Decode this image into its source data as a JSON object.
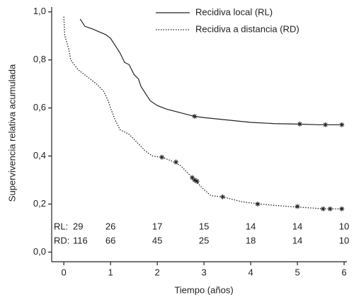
{
  "chart_data": {
    "type": "line",
    "y_label": "Supervivencia relativa acumulada",
    "x_label": "Tiempo (años)",
    "xlim": [
      -0.26,
      6.06
    ],
    "ylim": [
      -0.04,
      1.02
    ],
    "xticks": [
      0,
      1,
      2,
      3,
      4,
      5,
      6
    ],
    "yticks": [
      {
        "value": 0.0,
        "label": "0,0"
      },
      {
        "value": 0.2,
        "label": "0,2"
      },
      {
        "value": 0.4,
        "label": "0,4"
      },
      {
        "value": 0.6,
        "label": "0,6"
      },
      {
        "value": 0.8,
        "label": "0,8"
      },
      {
        "value": 1.0,
        "label": "1,0"
      }
    ],
    "series": [
      {
        "name": "Recidiva local (RL)",
        "color": "#222222",
        "dash": "solid",
        "x": [
          0.35,
          0.45,
          0.6,
          0.9,
          1.0,
          1.1,
          1.2,
          1.3,
          1.4,
          1.5,
          1.6,
          1.65,
          1.75,
          1.85,
          2.0,
          2.2,
          2.5,
          2.8,
          3.0,
          3.5,
          4.0,
          4.5,
          5.0,
          5.5,
          6.0
        ],
        "values": [
          0.97,
          0.94,
          0.93,
          0.905,
          0.89,
          0.86,
          0.83,
          0.79,
          0.78,
          0.74,
          0.72,
          0.69,
          0.66,
          0.63,
          0.61,
          0.595,
          0.58,
          0.565,
          0.56,
          0.55,
          0.54,
          0.535,
          0.533,
          0.53,
          0.53
        ],
        "censor_x": [
          2.8,
          5.05,
          5.6,
          5.95
        ],
        "censor_y": [
          0.565,
          0.533,
          0.53,
          0.53
        ]
      },
      {
        "name": "Recidiva a distancia (RD)",
        "color": "#222222",
        "dash": "dotted",
        "x": [
          0.0,
          0.02,
          0.1,
          0.15,
          0.3,
          0.5,
          0.7,
          0.85,
          0.95,
          1.0,
          1.1,
          1.2,
          1.4,
          1.6,
          1.75,
          1.9,
          2.1,
          2.3,
          2.5,
          2.65,
          2.75,
          2.85,
          3.0,
          3.15,
          3.4,
          3.8,
          4.2,
          4.8,
          5.2,
          5.6,
          6.0
        ],
        "values": [
          0.98,
          0.9,
          0.85,
          0.8,
          0.76,
          0.73,
          0.7,
          0.67,
          0.63,
          0.6,
          0.55,
          0.51,
          0.49,
          0.45,
          0.42,
          0.4,
          0.395,
          0.38,
          0.36,
          0.33,
          0.31,
          0.29,
          0.26,
          0.235,
          0.23,
          0.21,
          0.2,
          0.19,
          0.185,
          0.18,
          0.18
        ],
        "censor_x": [
          2.1,
          2.4,
          2.75,
          2.8,
          2.85,
          3.4,
          4.15,
          5.0,
          5.55,
          5.7,
          5.95
        ],
        "censor_y": [
          0.395,
          0.375,
          0.31,
          0.3,
          0.295,
          0.23,
          0.2,
          0.19,
          0.18,
          0.18,
          0.18
        ]
      }
    ],
    "risk_table": [
      {
        "label": "RL:",
        "values": [
          29,
          26,
          17,
          15,
          14,
          14,
          10
        ]
      },
      {
        "label": "RD:",
        "values": [
          116,
          66,
          45,
          25,
          18,
          14,
          10
        ]
      }
    ]
  }
}
